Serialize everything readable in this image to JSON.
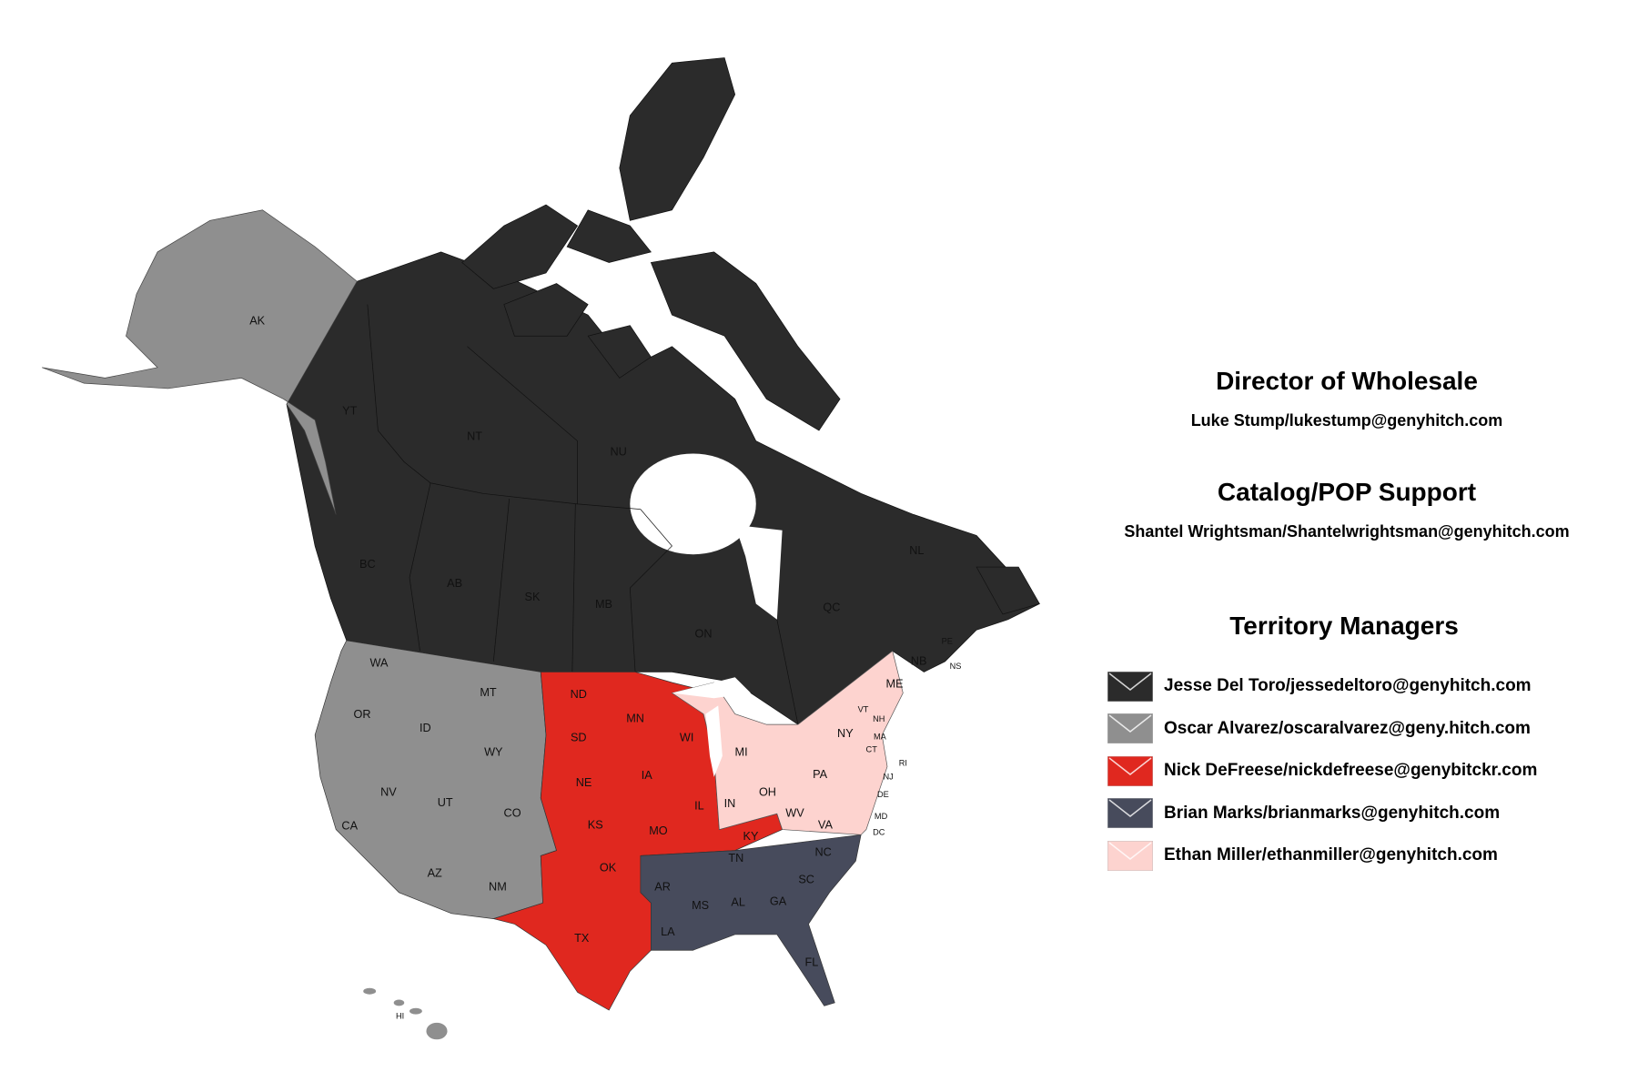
{
  "director": {
    "title": "Director of Wholesale",
    "contact": "Luke Stump/lukestump@genyhitch.com"
  },
  "catalog": {
    "title": "Catalog/POP Support",
    "contact": "Shantel Wrightsman/Shantelwrightsman@genyhitch.com"
  },
  "territory": {
    "title": "Territory Managers",
    "managers": [
      {
        "label": "Jesse Del Toro/jessedeltoro@genyhitch.com",
        "color": "#2b2b2b",
        "icon": "envelope-icon"
      },
      {
        "label": "Oscar Alvarez/oscaralvarez@geny.hitch.com",
        "color": "#8f8f8f",
        "icon": "envelope-icon"
      },
      {
        "label": "Nick DeFreese/nickdefreese@genybitckr.com",
        "color": "#e0281f",
        "icon": "envelope-icon"
      },
      {
        "label": "Brian Marks/brianmarks@genyhitch.com",
        "color": "#474b5c",
        "icon": "envelope-icon"
      },
      {
        "label": "Ethan Miller/ethanmiller@genyhitch.com",
        "color": "#fdd3cf",
        "icon": "envelope-icon"
      }
    ]
  },
  "map_labels": [
    "AK",
    "YT",
    "NT",
    "NU",
    "BC",
    "AB",
    "SK",
    "MB",
    "ON",
    "QC",
    "NL",
    "PE",
    "NB",
    "NS",
    "WA",
    "MT",
    "OR",
    "ID",
    "WY",
    "NV",
    "UT",
    "CO",
    "CA",
    "AZ",
    "NM",
    "ND",
    "MN",
    "SD",
    "WI",
    "NE",
    "IA",
    "IL",
    "KS",
    "MO",
    "OK",
    "TX",
    "KY",
    "MI",
    "IN",
    "OH",
    "PA",
    "NY",
    "ME",
    "VT",
    "NH",
    "MA",
    "CT",
    "RI",
    "NJ",
    "DE",
    "MD",
    "DC",
    "WV",
    "VA",
    "NC",
    "TN",
    "SC",
    "AR",
    "MS",
    "AL",
    "GA",
    "LA",
    "FL",
    "HI"
  ]
}
